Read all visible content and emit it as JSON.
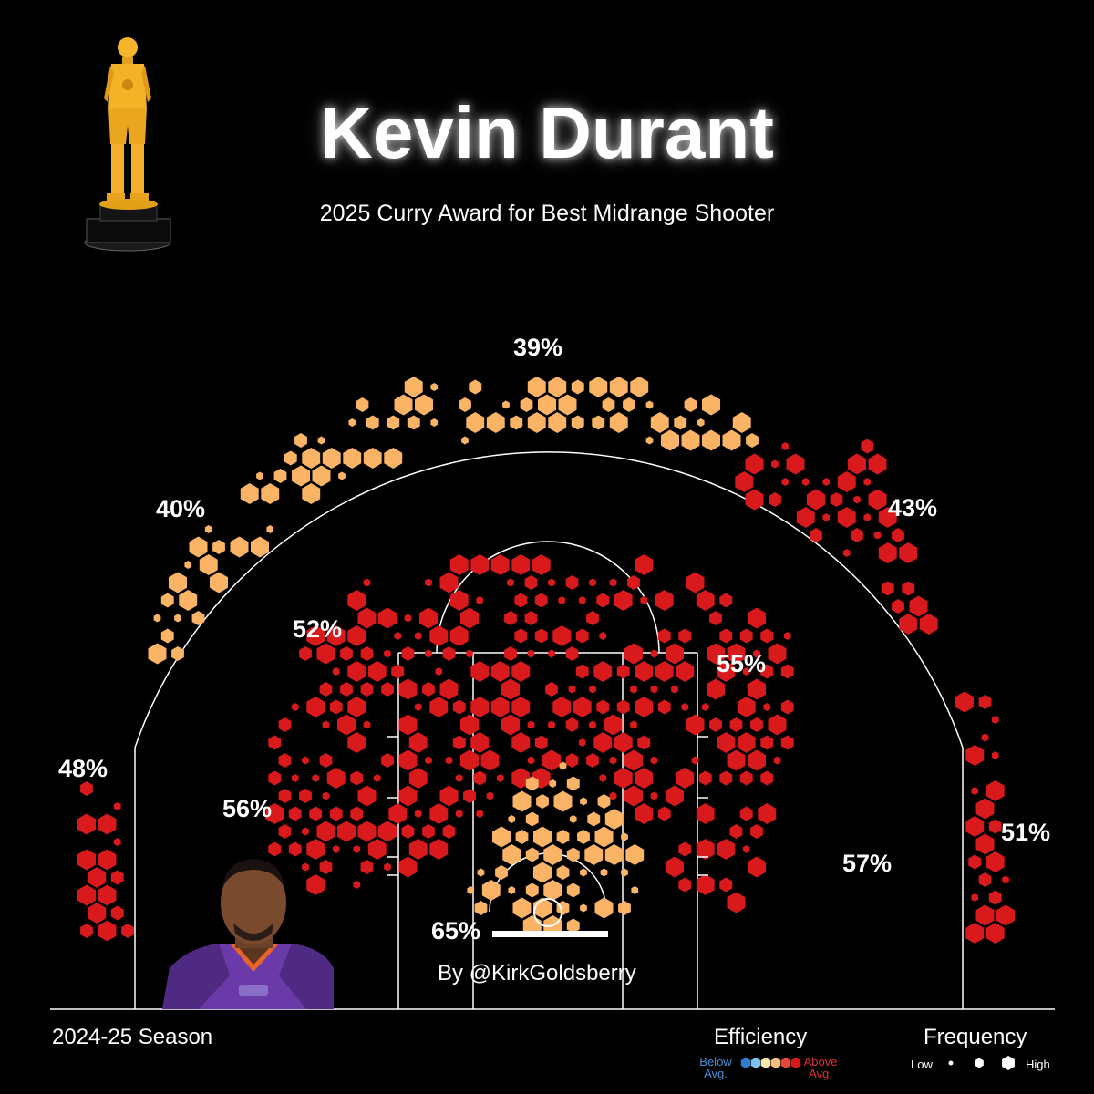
{
  "header": {
    "title": "Kevin Durant",
    "subtitle": "2025 Curry Award for Best Midrange Shooter"
  },
  "footer": {
    "season": "2024-25 Season",
    "byline": "By @KirkGoldsberry"
  },
  "legend": {
    "efficiency_title": "Efficiency",
    "below_label": "Below Avg.",
    "above_label": "Above Avg.",
    "efficiency_colors": [
      "#2f7fd0",
      "#7fc3ef",
      "#fde9a8",
      "#fbbf7e",
      "#e8483a",
      "#d9191c"
    ],
    "frequency_title": "Frequency",
    "low_label": "Low",
    "high_label": "High"
  },
  "colors": {
    "above_average": "#d91a1c",
    "near_average": "#fbb365",
    "court_lines": "#ffffff",
    "background": "#000000"
  },
  "images": {
    "trophy": "golden-player-trophy-icon",
    "player_photo": "player-headshot-portrait"
  },
  "chart_data": {
    "type": "hexbin-shot-chart",
    "title": "Kevin Durant",
    "subtitle": "2025 Curry Award for Best Midrange Shooter",
    "season": "2024-25 Season",
    "zones": [
      {
        "zone": "above-break-3-left",
        "fg_pct": "40%",
        "color": "near_average"
      },
      {
        "zone": "above-break-3-center",
        "fg_pct": "39%",
        "color": "near_average"
      },
      {
        "zone": "above-break-3-right",
        "fg_pct": "43%",
        "color": "above_average"
      },
      {
        "zone": "corner-3-left",
        "fg_pct": "48%",
        "color": "above_average"
      },
      {
        "zone": "corner-3-right",
        "fg_pct": "51%",
        "color": "above_average"
      },
      {
        "zone": "long-midrange-left",
        "fg_pct": "52%",
        "color": "above_average"
      },
      {
        "zone": "long-midrange-right",
        "fg_pct": "55%",
        "color": "above_average"
      },
      {
        "zone": "short-midrange-left",
        "fg_pct": "56%",
        "color": "above_average"
      },
      {
        "zone": "short-midrange-right",
        "fg_pct": "57%",
        "color": "above_average"
      },
      {
        "zone": "restricted-area",
        "fg_pct": "65%",
        "color": "near_average"
      }
    ],
    "legend": {
      "efficiency": [
        "Below Avg.",
        "Above Avg."
      ],
      "frequency": [
        "Low",
        "High"
      ]
    }
  }
}
